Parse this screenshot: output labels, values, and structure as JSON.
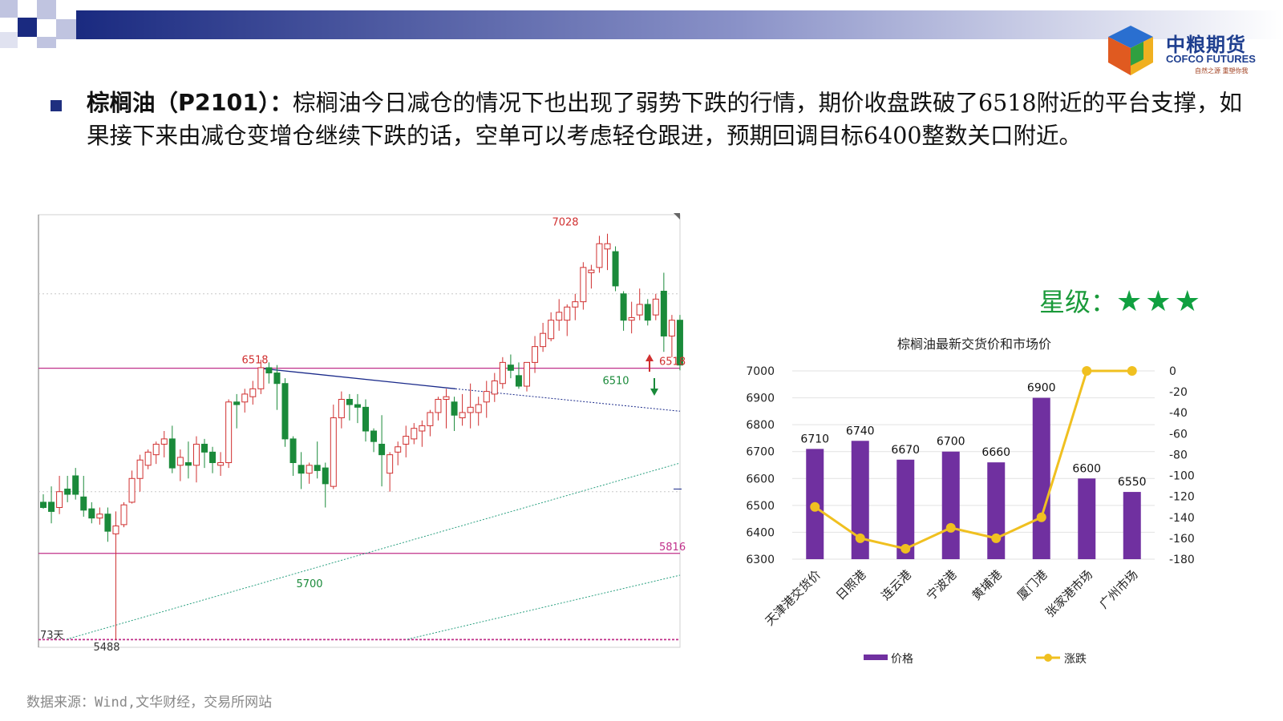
{
  "header": {
    "logo_cn": "中粮期货",
    "logo_en": "COFCO FUTURES",
    "logo_slogan": "自然之源 重塑你我"
  },
  "summary": {
    "title": "棕榈油（P2101）：",
    "body": "棕榈油今日减仓的情况下也出现了弱势下跌的行情，期价收盘跌破了6518附近的平台支撑，如果接下来由减仓变增仓继续下跌的话，空单可以考虑轻仓跟进，预期回调目标6400整数关口附近。"
  },
  "rating": {
    "label": "星级：",
    "stars": "★★★"
  },
  "source": "数据来源：Wind,文华财经，交易所网站",
  "candles": [
    [
      6010,
      6040,
      5990,
      5985
    ],
    [
      6010,
      6070,
      5975,
      5930
    ],
    [
      5990,
      6110,
      6050,
      5965
    ],
    [
      6060,
      6110,
      6040,
      6010
    ],
    [
      6110,
      6140,
      6040,
      6020
    ],
    [
      6030,
      6110,
      5980,
      5955
    ],
    [
      5985,
      6010,
      5950,
      5930
    ],
    [
      5950,
      5990,
      5965,
      5925
    ],
    [
      5965,
      5990,
      5900,
      5860
    ],
    [
      5890,
      5975,
      5920,
      5488
    ],
    [
      5925,
      6010,
      6000,
      5915
    ],
    [
      6010,
      6130,
      6100,
      6005
    ],
    [
      6100,
      6190,
      6170,
      6050
    ],
    [
      6150,
      6210,
      6200,
      6135
    ],
    [
      6190,
      6240,
      6230,
      6155
    ],
    [
      6230,
      6280,
      6250,
      6180
    ],
    [
      6250,
      6300,
      6140,
      6120
    ],
    [
      6150,
      6210,
      6180,
      6090
    ],
    [
      6160,
      6240,
      6150,
      6100
    ],
    [
      6150,
      6260,
      6230,
      6085
    ],
    [
      6230,
      6250,
      6200,
      6140
    ],
    [
      6200,
      6220,
      6160,
      6120
    ],
    [
      6150,
      6200,
      6160,
      6110
    ],
    [
      6160,
      6400,
      6390,
      6140
    ],
    [
      6390,
      6420,
      6380,
      6290
    ],
    [
      6390,
      6440,
      6420,
      6350
    ],
    [
      6410,
      6470,
      6440,
      6380
    ],
    [
      6440,
      6550,
      6520,
      6420
    ],
    [
      6520,
      6540,
      6500,
      6460
    ],
    [
      6500,
      6530,
      6460,
      6360
    ],
    [
      6460,
      6480,
      6250,
      6220
    ],
    [
      6250,
      6260,
      6160,
      6110
    ],
    [
      6150,
      6200,
      6120,
      6060
    ],
    [
      6120,
      6160,
      6150,
      6080
    ],
    [
      6150,
      6240,
      6130,
      6100
    ],
    [
      6140,
      6160,
      6080,
      5990
    ],
    [
      6070,
      6380,
      6330,
      6060
    ],
    [
      6330,
      6430,
      6400,
      6290
    ],
    [
      6400,
      6420,
      6380,
      6320
    ],
    [
      6380,
      6420,
      6370,
      6310
    ],
    [
      6370,
      6400,
      6280,
      6240
    ],
    [
      6280,
      6290,
      6240,
      6200
    ],
    [
      6230,
      6340,
      6190,
      6070
    ],
    [
      6120,
      6200,
      6190,
      6050
    ],
    [
      6200,
      6240,
      6220,
      6150
    ],
    [
      6230,
      6300,
      6260,
      6180
    ],
    [
      6250,
      6310,
      6290,
      6230
    ],
    [
      6280,
      6320,
      6300,
      6220
    ],
    [
      6300,
      6360,
      6350,
      6260
    ],
    [
      6350,
      6410,
      6400,
      6320
    ],
    [
      6400,
      6440,
      6410,
      6290
    ],
    [
      6390,
      6410,
      6340,
      6280
    ],
    [
      6330,
      6420,
      6350,
      6300
    ],
    [
      6350,
      6460,
      6370,
      6290
    ],
    [
      6350,
      6410,
      6380,
      6300
    ],
    [
      6390,
      6470,
      6430,
      6330
    ],
    [
      6420,
      6500,
      6470,
      6390
    ],
    [
      6460,
      6560,
      6540,
      6440
    ],
    [
      6530,
      6570,
      6510,
      6480
    ],
    [
      6490,
      6540,
      6450,
      6440
    ],
    [
      6450,
      6520,
      6540,
      6430
    ],
    [
      6540,
      6640,
      6600,
      6500
    ],
    [
      6600,
      6690,
      6650,
      6580
    ],
    [
      6630,
      6730,
      6700,
      6620
    ],
    [
      6700,
      6780,
      6730,
      6660
    ],
    [
      6700,
      6760,
      6750,
      6640
    ],
    [
      6750,
      6800,
      6770,
      6700
    ],
    [
      6770,
      6920,
      6900,
      6740
    ],
    [
      6880,
      6910,
      6890,
      6820
    ],
    [
      6900,
      7020,
      6990,
      6880
    ],
    [
      6970,
      7028,
      6990,
      6890
    ],
    [
      6960,
      6980,
      6830,
      6810
    ],
    [
      6800,
      6810,
      6700,
      6660
    ],
    [
      6700,
      6770,
      6710,
      6650
    ],
    [
      6720,
      6820,
      6760,
      6700
    ],
    [
      6760,
      6780,
      6700,
      6680
    ],
    [
      6720,
      6800,
      6780,
      6700
    ],
    [
      6810,
      6880,
      6640,
      6580
    ],
    [
      6640,
      6720,
      6700,
      6560
    ],
    [
      6700,
      6720,
      6530,
      6510
    ]
  ],
  "kline": {
    "ymin": 5460,
    "ymax": 7100,
    "support_level": 6518,
    "lower_level": 5816,
    "base_level": 5488,
    "labels": {
      "high": "7028",
      "support_left": "6518",
      "support_right": "6518",
      "last": "6510",
      "lower_right": "5816",
      "low_mid": "5700",
      "low_left": "5488",
      "days": "73天"
    }
  },
  "colors": {
    "up": "#d03030",
    "down": "#1a8a3a",
    "bar": "#7030a0",
    "line": "#f0c020",
    "level": "#c0308a"
  },
  "chart_data": {
    "type": "bar",
    "title": "棕榈油最新交货价和市场价",
    "categories": [
      "天津港交货价",
      "日照港",
      "连云港",
      "宁波港",
      "黄埔港",
      "厦门港",
      "张家港市场",
      "广州市场"
    ],
    "series": [
      {
        "name": "价格",
        "type": "bar",
        "axis": "left",
        "values": [
          6710,
          6740,
          6670,
          6700,
          6660,
          6900,
          6600,
          6550
        ]
      },
      {
        "name": "涨跌",
        "type": "line",
        "axis": "right",
        "values": [
          -130,
          -160,
          -170,
          -150,
          -160,
          -140,
          0,
          0
        ]
      }
    ],
    "ylim": [
      6300,
      7000
    ],
    "y2lim": [
      -180,
      0
    ],
    "yticks": [
      "6300",
      "6400",
      "6500",
      "6600",
      "6700",
      "6800",
      "6900",
      "7000"
    ],
    "y2ticks": [
      "-180",
      "-160",
      "-140",
      "-120",
      "-100",
      "-80",
      "-60",
      "-40",
      "-20",
      "0"
    ],
    "legend": "bottom"
  }
}
